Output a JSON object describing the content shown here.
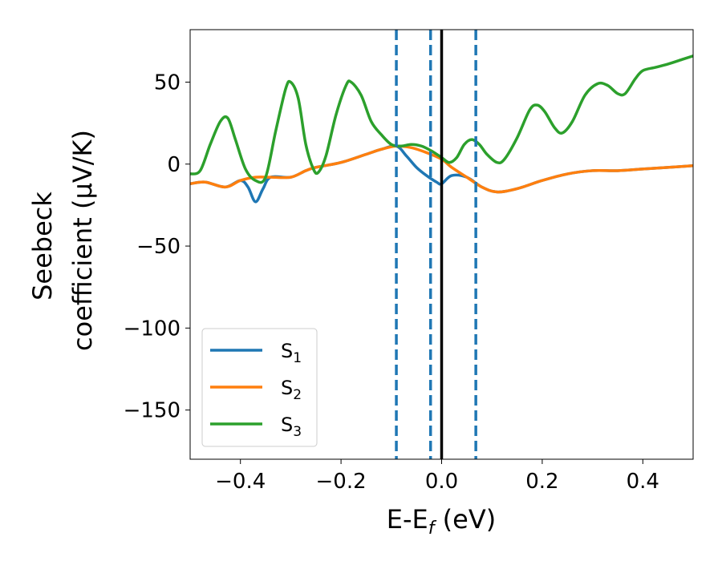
{
  "chart_data": {
    "type": "line",
    "xlabel": "E-E",
    "xlabel_sub": "f",
    "xlabel_unit": " (eV)",
    "ylabel_line1": "Seebeck",
    "ylabel_line2": "coefficient  (μV/K)",
    "xlim": [
      -0.5,
      0.5
    ],
    "ylim": [
      -180,
      82
    ],
    "x_ticks": [
      -0.4,
      -0.2,
      0.0,
      0.2,
      0.4
    ],
    "x_tick_labels": [
      "−0.4",
      "−0.2",
      "0.0",
      "0.2",
      "0.4"
    ],
    "y_ticks": [
      50,
      0,
      -50,
      -100,
      -150
    ],
    "y_tick_labels": [
      "50",
      "0",
      "−50",
      "−100",
      "−150"
    ],
    "grid": false,
    "legend_position": "lower-left",
    "vertical_lines": [
      {
        "x": -0.09,
        "style": "dashed",
        "color": "#1f77b4"
      },
      {
        "x": -0.022,
        "style": "dashed",
        "color": "#1f77b4"
      },
      {
        "x": 0.0,
        "style": "solid",
        "color": "#000000"
      },
      {
        "x": 0.068,
        "style": "dashed",
        "color": "#1f77b4"
      }
    ],
    "series": [
      {
        "name": "S",
        "name_sub": "1",
        "color": "#1f77b4",
        "points": [
          [
            -0.5,
            -12
          ],
          [
            -0.47,
            -11
          ],
          [
            -0.43,
            -14
          ],
          [
            -0.4,
            -10
          ],
          [
            -0.385,
            -14
          ],
          [
            -0.37,
            -23
          ],
          [
            -0.355,
            -15
          ],
          [
            -0.34,
            -8
          ],
          [
            -0.3,
            -8
          ],
          [
            -0.27,
            -4
          ],
          [
            -0.25,
            -2
          ],
          [
            -0.2,
            1
          ],
          [
            -0.15,
            6
          ],
          [
            -0.12,
            9
          ],
          [
            -0.09,
            11
          ],
          [
            -0.07,
            5
          ],
          [
            -0.05,
            -2
          ],
          [
            -0.03,
            -7
          ],
          [
            -0.01,
            -11
          ],
          [
            0.0,
            -12
          ],
          [
            0.02,
            -7
          ],
          [
            0.05,
            -8
          ],
          [
            0.08,
            -14
          ],
          [
            0.11,
            -17
          ],
          [
            0.15,
            -15
          ],
          [
            0.2,
            -10
          ],
          [
            0.25,
            -6
          ],
          [
            0.3,
            -4
          ],
          [
            0.35,
            -4
          ],
          [
            0.4,
            -3
          ],
          [
            0.45,
            -2
          ],
          [
            0.5,
            -1
          ]
        ]
      },
      {
        "name": "S",
        "name_sub": "2",
        "color": "#ff7f0e",
        "points": [
          [
            -0.5,
            -12
          ],
          [
            -0.47,
            -11
          ],
          [
            -0.43,
            -14
          ],
          [
            -0.4,
            -10
          ],
          [
            -0.37,
            -8
          ],
          [
            -0.34,
            -8
          ],
          [
            -0.3,
            -8
          ],
          [
            -0.27,
            -4
          ],
          [
            -0.25,
            -2
          ],
          [
            -0.2,
            1
          ],
          [
            -0.15,
            6
          ],
          [
            -0.12,
            9
          ],
          [
            -0.09,
            11
          ],
          [
            -0.06,
            10
          ],
          [
            -0.03,
            7
          ],
          [
            0.0,
            3
          ],
          [
            0.02,
            -2
          ],
          [
            0.05,
            -8
          ],
          [
            0.08,
            -14
          ],
          [
            0.11,
            -17
          ],
          [
            0.15,
            -15
          ],
          [
            0.2,
            -10
          ],
          [
            0.25,
            -6
          ],
          [
            0.3,
            -4
          ],
          [
            0.35,
            -4
          ],
          [
            0.4,
            -3
          ],
          [
            0.45,
            -2
          ],
          [
            0.5,
            -1
          ]
        ]
      },
      {
        "name": "S",
        "name_sub": "3",
        "color": "#2ca02c",
        "points": [
          [
            -0.5,
            -6
          ],
          [
            -0.48,
            -4
          ],
          [
            -0.46,
            12
          ],
          [
            -0.44,
            26
          ],
          [
            -0.425,
            28
          ],
          [
            -0.41,
            15
          ],
          [
            -0.39,
            -3
          ],
          [
            -0.37,
            -10
          ],
          [
            -0.35,
            -8
          ],
          [
            -0.33,
            20
          ],
          [
            -0.31,
            46
          ],
          [
            -0.3,
            50
          ],
          [
            -0.285,
            40
          ],
          [
            -0.27,
            12
          ],
          [
            -0.255,
            -3
          ],
          [
            -0.245,
            -5
          ],
          [
            -0.23,
            5
          ],
          [
            -0.21,
            30
          ],
          [
            -0.19,
            48
          ],
          [
            -0.18,
            50
          ],
          [
            -0.16,
            42
          ],
          [
            -0.14,
            26
          ],
          [
            -0.12,
            18
          ],
          [
            -0.1,
            12
          ],
          [
            -0.08,
            11
          ],
          [
            -0.06,
            12
          ],
          [
            -0.04,
            11
          ],
          [
            -0.02,
            8
          ],
          [
            0.0,
            4
          ],
          [
            0.015,
            1
          ],
          [
            0.03,
            4
          ],
          [
            0.045,
            12
          ],
          [
            0.06,
            15
          ],
          [
            0.075,
            12
          ],
          [
            0.09,
            6
          ],
          [
            0.11,
            1
          ],
          [
            0.125,
            3
          ],
          [
            0.15,
            16
          ],
          [
            0.175,
            33
          ],
          [
            0.19,
            36
          ],
          [
            0.205,
            32
          ],
          [
            0.225,
            22
          ],
          [
            0.24,
            19
          ],
          [
            0.26,
            26
          ],
          [
            0.285,
            42
          ],
          [
            0.31,
            49
          ],
          [
            0.33,
            48
          ],
          [
            0.35,
            43
          ],
          [
            0.365,
            43
          ],
          [
            0.385,
            52
          ],
          [
            0.4,
            57
          ],
          [
            0.425,
            59
          ],
          [
            0.45,
            61
          ],
          [
            0.48,
            64
          ],
          [
            0.5,
            66
          ]
        ]
      }
    ]
  }
}
